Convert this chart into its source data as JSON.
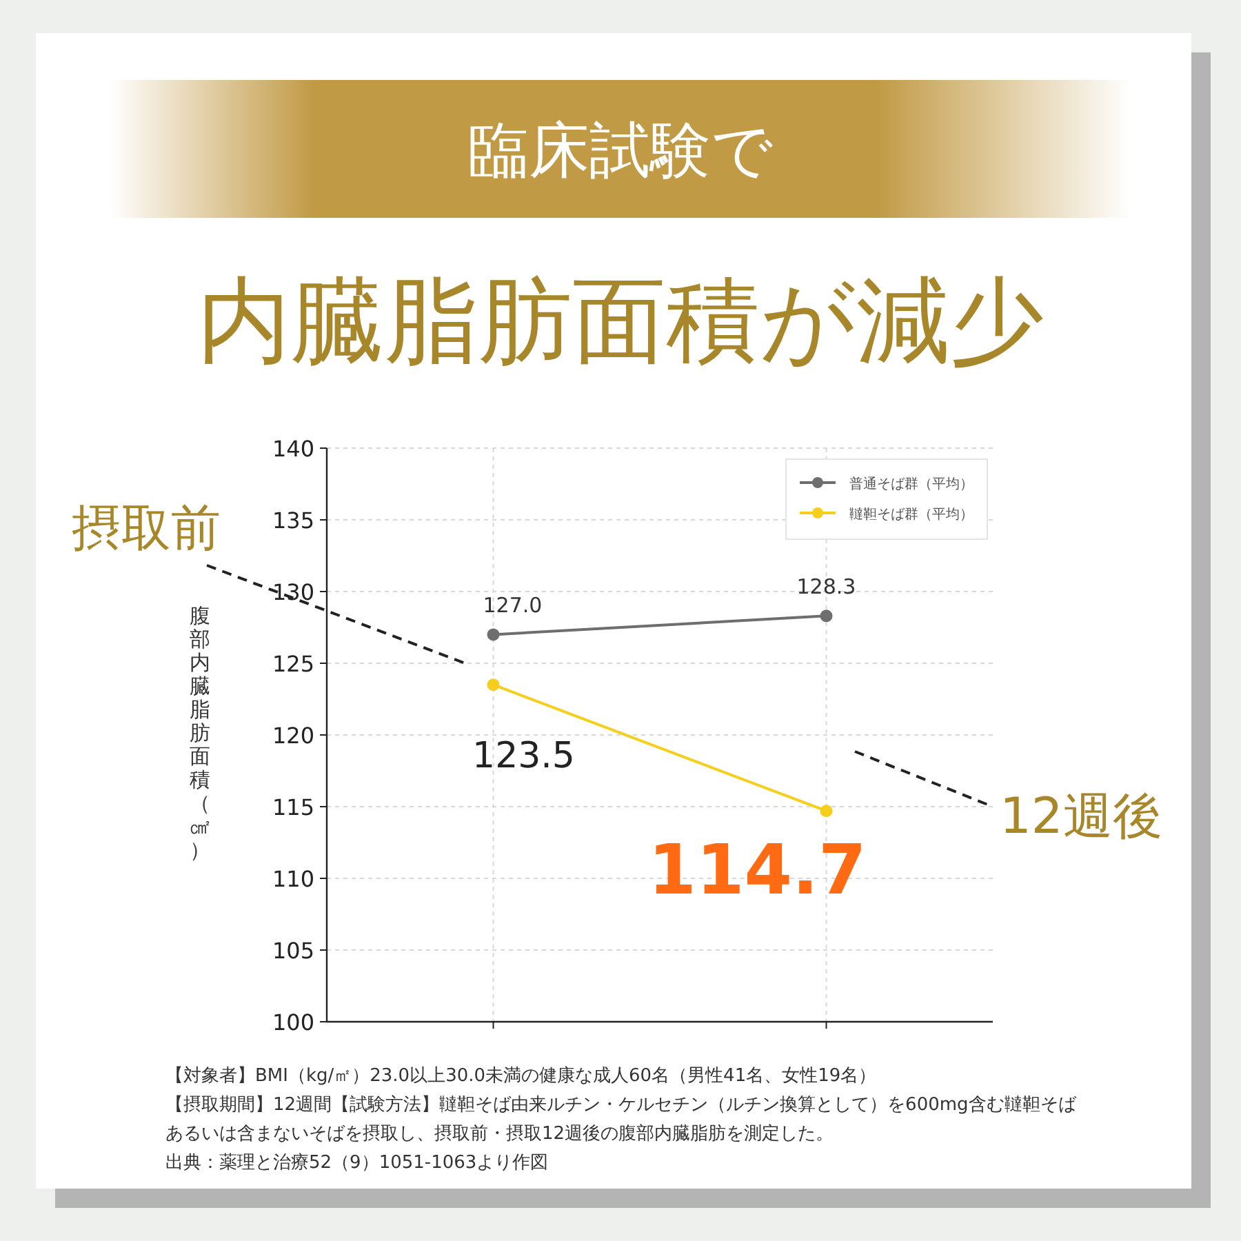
{
  "chart_data": {
    "type": "line",
    "title": "臨床試験で",
    "subtitle": "内臓脂肪面積が減少",
    "ylabel": "腹部内臓脂肪面積（㎠）",
    "categories": [
      null,
      null
    ],
    "series": [
      {
        "name": "普通そば群（平均）",
        "color": "#6e6e6e",
        "values": [
          127.0,
          128.3
        ],
        "value_labels": [
          "127.0",
          "128.3"
        ]
      },
      {
        "name": "韃靼そば群（平均）",
        "color": "#f5cf1c",
        "values": [
          123.5,
          114.7
        ],
        "value_labels": [
          "123.5",
          "114.7"
        ]
      }
    ],
    "ylim": [
      100,
      140
    ],
    "yticks": [
      100,
      105,
      110,
      115,
      120,
      125,
      130,
      135,
      140
    ],
    "grid": true,
    "legend": "top right",
    "marker": "circle",
    "line_style": "solid",
    "annotations": [
      "摂取前",
      "12週後",
      "【対象者】BMI（kg/㎡）23.0以上30.0未満の健康な成人60名（男性41名、女性19名）",
      "【摂取期間】12週間【試験方法】韃靼そば由来ルチン・ケルセチン（ルチン換算として）を600mg含む韃靼そば",
      "あるいは含まないそばを摂取し、摂取前・摂取12週後の腹部内臓脂肪を測定した。",
      "出典：薬理と治療52（9）1051-1063より作図"
    ]
  }
}
